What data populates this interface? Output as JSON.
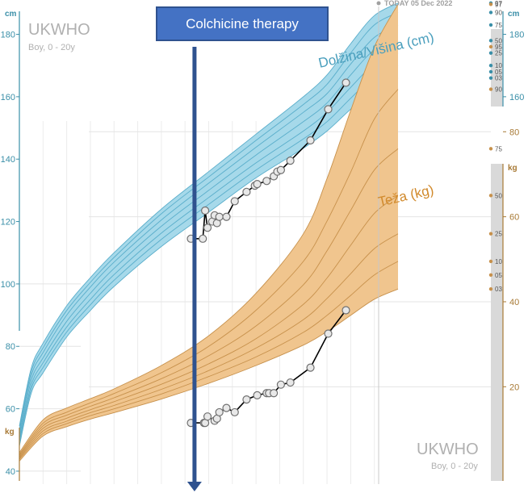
{
  "chart_data": {
    "type": "line",
    "brand": {
      "name": "UKWHO",
      "subtitle": "Boy, 0 - 20y"
    },
    "today_label": "TODAY 05 Dec 2022",
    "annotation": "Colchicine therapy",
    "annotation_age": 7.4,
    "x_range": [
      0,
      16
    ],
    "today_age": 11.7,
    "colors": {
      "height_fill": "#a6d9ea",
      "height_line": "#5aaecb",
      "height_axis": "#3a8fa8",
      "weight_fill": "#f0c58e",
      "weight_line": "#c7914c",
      "weight_axis": "#a87a36",
      "patient": "#000000",
      "annotation": "#4472c4"
    },
    "height": {
      "label": "Dolžina/Višina (cm)",
      "unit": "cm",
      "ylim": [
        33,
        191
      ],
      "ticks": [
        40,
        60,
        80,
        100,
        120,
        140,
        160,
        180
      ],
      "right_ticks": [
        160,
        180
      ],
      "percentile_labels": [
        "97",
        "90",
        "75",
        "50",
        "25",
        "10",
        "03",
        "05"
      ],
      "percentiles": [
        {
          "name": "97",
          "x": [
            0,
            0.5,
            1,
            2,
            3,
            4,
            6,
            8,
            10,
            12,
            13,
            14,
            15,
            16
          ],
          "y": [
            54.5,
            73,
            81,
            93,
            102,
            110,
            124,
            136,
            148,
            160,
            167,
            177,
            186,
            190
          ]
        },
        {
          "name": "90",
          "x": [
            0,
            0.5,
            1,
            2,
            3,
            4,
            6,
            8,
            10,
            12,
            13,
            14,
            15,
            16
          ],
          "y": [
            53.5,
            71.8,
            79.5,
            91.5,
            100.5,
            108.5,
            122.5,
            134.3,
            146,
            157.5,
            164,
            174,
            183,
            187
          ]
        },
        {
          "name": "75",
          "x": [
            0,
            0.5,
            1,
            2,
            3,
            4,
            6,
            8,
            10,
            12,
            13,
            14,
            15,
            16
          ],
          "y": [
            52.5,
            70.5,
            78,
            90,
            99,
            107,
            120.5,
            132.3,
            143.8,
            155,
            161,
            170.5,
            179,
            183
          ]
        },
        {
          "name": "50",
          "x": [
            0,
            0.5,
            1,
            2,
            3,
            4,
            6,
            8,
            10,
            12,
            13,
            14,
            15,
            16
          ],
          "y": [
            51.3,
            69,
            76.3,
            88,
            97,
            105,
            118.5,
            130,
            141.3,
            152,
            158,
            167,
            175,
            178
          ]
        },
        {
          "name": "25",
          "x": [
            0,
            0.5,
            1,
            2,
            3,
            4,
            6,
            8,
            10,
            12,
            13,
            14,
            15,
            16
          ],
          "y": [
            50.2,
            67.5,
            74.7,
            86.2,
            95,
            103,
            116.3,
            127.7,
            138.8,
            149,
            155,
            163,
            170.5,
            174
          ]
        },
        {
          "name": "10",
          "x": [
            0,
            0.5,
            1,
            2,
            3,
            4,
            6,
            8,
            10,
            12,
            13,
            14,
            15,
            16
          ],
          "y": [
            49.2,
            66.3,
            73.2,
            84.6,
            93.3,
            101.2,
            114.3,
            125.5,
            136.5,
            146.5,
            152,
            159.5,
            166.5,
            170
          ]
        },
        {
          "name": "03",
          "x": [
            0,
            0.5,
            1,
            2,
            3,
            4,
            6,
            8,
            10,
            12,
            13,
            14,
            15,
            16
          ],
          "y": [
            48,
            65,
            71.5,
            83,
            91.5,
            99.2,
            112,
            123,
            134,
            143.5,
            149,
            156,
            162.5,
            166
          ]
        }
      ],
      "patient": {
        "x": [
          7.25,
          7.75,
          7.85,
          7.95,
          8.15,
          8.25,
          8.35,
          8.45,
          8.75,
          9.1,
          9.6,
          9.95,
          10.05,
          10.45,
          10.75,
          10.9,
          11.05,
          11.45,
          12.3,
          13.05,
          13.8
        ],
        "y": [
          114.5,
          114.5,
          123.5,
          118,
          120,
          122,
          119.5,
          121.5,
          121.5,
          126.5,
          129.5,
          131.5,
          132,
          133,
          134.5,
          136,
          136.5,
          139.5,
          146,
          156,
          164.5
        ]
      }
    },
    "weight": {
      "label": "Teža (kg)",
      "unit": "kg",
      "ylim": [
        -5,
        111
      ],
      "ticks": [
        20,
        40,
        60,
        80
      ],
      "percentile_labels": [
        "97",
        "95",
        "90",
        "75",
        "50",
        "25",
        "10",
        "05",
        "03"
      ],
      "percentiles": [
        {
          "name": "97",
          "x": [
            0,
            1,
            2,
            3,
            4,
            6,
            8,
            10,
            12,
            13,
            14,
            15,
            16
          ],
          "y": [
            4.5,
            12.2,
            15,
            17.2,
            19.5,
            25,
            32,
            42,
            56,
            69,
            85,
            100,
            110
          ]
        },
        {
          "name": "90",
          "x": [
            0,
            1,
            2,
            3,
            4,
            6,
            8,
            10,
            12,
            13,
            14,
            15,
            16
          ],
          "y": [
            4.1,
            11.4,
            14,
            16.2,
            18.4,
            23.3,
            29.5,
            38,
            49.5,
            59,
            70.5,
            83,
            90
          ]
        },
        {
          "name": "75",
          "x": [
            0,
            1,
            2,
            3,
            4,
            6,
            8,
            10,
            12,
            13,
            14,
            15,
            16
          ],
          "y": [
            3.8,
            10.8,
            13.3,
            15.4,
            17.4,
            21.9,
            27.3,
            34.3,
            44,
            52,
            61.5,
            71,
            76
          ]
        },
        {
          "name": "50",
          "x": [
            0,
            1,
            2,
            3,
            4,
            6,
            8,
            10,
            12,
            13,
            14,
            15,
            16
          ],
          "y": [
            3.5,
            10.2,
            12.6,
            14.6,
            16.5,
            20.6,
            25.4,
            31.3,
            39.4,
            45.6,
            53.3,
            60.8,
            65
          ]
        },
        {
          "name": "25",
          "x": [
            0,
            1,
            2,
            3,
            4,
            6,
            8,
            10,
            12,
            13,
            14,
            15,
            16
          ],
          "y": [
            3.2,
            9.6,
            11.9,
            13.9,
            15.6,
            19.4,
            23.8,
            29.1,
            35.8,
            40.8,
            46.6,
            52.5,
            56
          ]
        },
        {
          "name": "10",
          "x": [
            0,
            1,
            2,
            3,
            4,
            6,
            8,
            10,
            12,
            13,
            14,
            15,
            16
          ],
          "y": [
            2.9,
            9,
            11.3,
            13.2,
            14.8,
            18.3,
            22.4,
            27,
            32.8,
            36.8,
            41.5,
            46.3,
            49.5
          ]
        },
        {
          "name": "03",
          "x": [
            0,
            1,
            2,
            3,
            4,
            6,
            8,
            10,
            12,
            13,
            14,
            15,
            16
          ],
          "y": [
            2.5,
            8.4,
            10.6,
            12.4,
            13.9,
            17.1,
            20.8,
            25,
            29.8,
            33,
            36.8,
            40.6,
            43
          ]
        }
      ],
      "patient": {
        "x": [
          7.25,
          7.8,
          7.85,
          7.95,
          8.25,
          8.35,
          8.45,
          8.75,
          9.1,
          9.6,
          10.05,
          10.45,
          10.55,
          10.75,
          11.05,
          11.45,
          12.3,
          13.05,
          13.8
        ],
        "y": [
          11.5,
          11.5,
          11.5,
          13,
          12,
          12.5,
          14,
          15,
          14,
          17,
          18,
          18.5,
          18.5,
          18.5,
          20.5,
          21,
          24.5,
          32.5,
          38
        ]
      }
    }
  }
}
